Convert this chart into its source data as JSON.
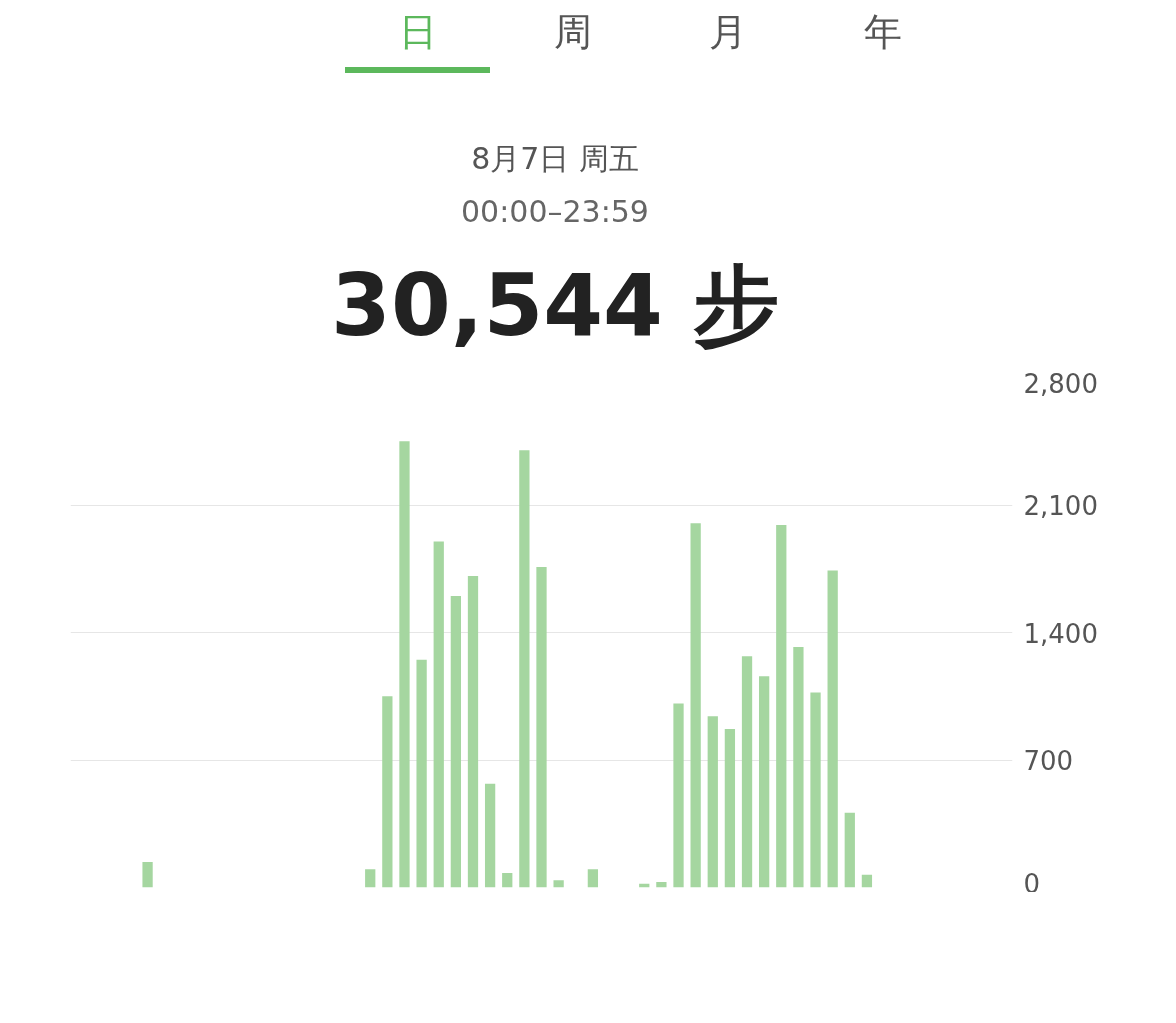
{
  "chart_data": {
    "type": "bar",
    "title": "30,544 步",
    "subtitle": "00:00–23:59",
    "annotations": [
      "日",
      "周",
      "月",
      "年",
      "8月7日 周五"
    ],
    "categories": [
      null,
      null,
      null,
      null,
      null,
      null,
      null,
      null,
      null,
      null,
      null,
      null,
      null,
      null,
      null,
      null,
      null,
      null,
      null,
      null,
      null,
      null,
      null,
      null,
      null,
      null,
      null,
      null,
      null,
      null,
      null,
      null,
      null,
      null,
      null,
      null,
      null,
      null,
      null,
      null,
      null,
      null,
      null,
      null,
      null,
      null,
      null,
      null,
      null,
      null,
      null,
      null,
      null,
      null,
      null
    ],
    "values": [
      null,
      null,
      null,
      null,
      140,
      null,
      null,
      null,
      null,
      null,
      null,
      null,
      null,
      null,
      null,
      null,
      null,
      100,
      1050,
      2450,
      1250,
      1900,
      1600,
      1710,
      570,
      80,
      2400,
      1760,
      40,
      null,
      100,
      null,
      null,
      20,
      30,
      1010,
      2000,
      940,
      870,
      1270,
      1160,
      1990,
      1320,
      1070,
      1740,
      410,
      70,
      null,
      null,
      null,
      null,
      null,
      null,
      null,
      null
    ],
    "color": "#a5d6a0",
    "ylim": [
      0,
      2800
    ],
    "yticks": [
      {
        "value": 0,
        "label": "0"
      },
      {
        "value": 700,
        "label": "700"
      },
      {
        "value": 1400,
        "label": "1,400"
      },
      {
        "value": 2100,
        "label": "2,100"
      },
      {
        "value": 2800,
        "label": "2,800"
      }
    ],
    "grid": "y"
  }
}
